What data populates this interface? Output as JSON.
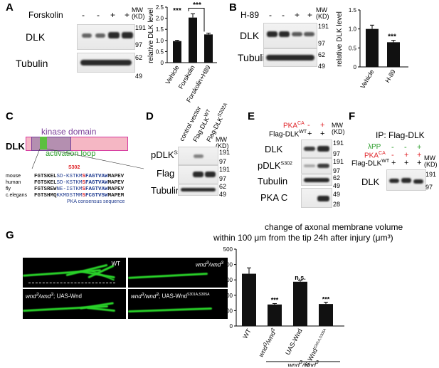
{
  "panels": {
    "A": {
      "label": "A",
      "treatment": "Forskolin",
      "lanes": [
        "-",
        "-",
        "+",
        "+"
      ],
      "mw_header": "MW\n(KD)",
      "mw": [
        "191",
        "97",
        "62",
        "49"
      ],
      "rows": [
        "DLK",
        "Tubulin"
      ],
      "chart": {
        "ylabel": "relative DLK level",
        "ticks": [
          "0",
          "0.5",
          "1.0",
          "1.5",
          "2.0",
          "2.5"
        ],
        "categories": [
          "Vehicle",
          "Forskolin",
          "Forskolin+H89"
        ],
        "sig": [
          "***",
          "***"
        ]
      }
    },
    "B": {
      "label": "B",
      "treatment": "H-89",
      "lanes": [
        "-",
        "-",
        "+",
        "+"
      ],
      "mw_header": "MW\n(KD)",
      "mw": [
        "191",
        "97",
        "62",
        "49"
      ],
      "rows": [
        "DLK",
        "Tubulin"
      ],
      "chart": {
        "ylabel": "relative DLK level",
        "ticks": [
          "0",
          "0.5",
          "1.0",
          "1.5"
        ],
        "categories": [
          "Vehicle",
          "H-89"
        ],
        "sig": [
          "***"
        ]
      }
    },
    "C": {
      "label": "C",
      "protein": "DLK",
      "kinase_domain": "kinase domain",
      "activation_loop": "activation loop",
      "site": "S302",
      "species": [
        "mouse",
        "human",
        "fly",
        "c.elegans"
      ],
      "seqs": [
        [
          "FGTSKEL",
          "SD-KSTKMS",
          "FAGTVAW",
          "MAPEV"
        ],
        [
          "FGTSKEL",
          "SD-KSTKMS",
          "FAGTVAW",
          "MAPEV"
        ],
        [
          "FGTSREW",
          "NE-ISTKMS",
          "FAGTVAW",
          "MAPEV"
        ],
        [
          "FGTSHMQ",
          "KKMDSTMMS",
          "FCGTVSW",
          "MAPEM"
        ]
      ],
      "consensus": "PKA consensus sequence"
    },
    "D": {
      "label": "D",
      "lanes": [
        "control vector",
        "Flag-DLK",
        "Flag-DLK"
      ],
      "lane_sup": [
        "",
        "WT",
        "S302A"
      ],
      "mw_header": "MW\n(KD)",
      "rows": [
        "pDLK",
        "Flag",
        "Tubulin"
      ],
      "row_sup": [
        "S302",
        "",
        ""
      ],
      "mw": [
        "191",
        "97",
        "191",
        "97",
        "62",
        "49"
      ]
    },
    "E": {
      "label": "E",
      "rowA": "PKA",
      "rowA_sup": "CA",
      "rowA_vals": [
        "-",
        "+"
      ],
      "rowB": "Flag-DLK",
      "rowB_sup": "WT",
      "rowB_vals": [
        "+",
        "+"
      ],
      "mw_header": "MW\n(KD)",
      "rows": [
        "DLK",
        "pDLK",
        "Tubulin",
        "PKA C"
      ],
      "row_sup": [
        "",
        "S302",
        "",
        ""
      ],
      "mw": [
        "191",
        "97",
        "191",
        "97",
        "62",
        "49",
        "49",
        "28"
      ]
    },
    "F": {
      "label": "F",
      "title": "IP: Flag-DLK",
      "rowA": "λPP",
      "rowA_vals": [
        "-",
        "-",
        "+"
      ],
      "rowB": "PKA",
      "rowB_sup": "CA",
      "rowB_vals": [
        "-",
        "+",
        "+"
      ],
      "rowC": "Flag-DLK",
      "rowC_sup": "WT",
      "rowC_vals": [
        "+",
        "+",
        "+"
      ],
      "mw_header": "MW\n(KD)",
      "row": "DLK",
      "mw": [
        "191",
        "97"
      ]
    },
    "G": {
      "label": "G",
      "title_line1": "change of axonal membrane volume",
      "title_line2": "within 100 μm from the tip 24h after injury (μm³)",
      "images": [
        {
          "pre": "WT",
          "sup": "",
          "post": ""
        },
        {
          "pre": "wnd",
          "sup": "3",
          "post": "/wnd",
          "sup2": "3",
          "tail": ""
        },
        {
          "pre": "wnd",
          "sup": "3",
          "post": "/wnd",
          "sup2": "3",
          "tail": "; UAS-Wnd"
        },
        {
          "pre": "wnd",
          "sup": "3",
          "post": "/wnd",
          "sup2": "3",
          "tail": "; UAS-Wnd",
          "sup3": "S301A,S305A"
        }
      ],
      "chart": {
        "ticks": [
          "0",
          "100",
          "200",
          "300",
          "400",
          "500"
        ],
        "categories": [
          "WT",
          "wnd3/wnd3",
          "UAS-Wnd",
          "UAS-WndS301A,S305A"
        ],
        "sig": [
          "***",
          "n.s.",
          "***"
        ],
        "group": "wnd3/wnd3"
      }
    }
  },
  "chart_data": [
    {
      "type": "bar",
      "panel": "A",
      "categories": [
        "Vehicle",
        "Forskolin",
        "Forskolin+H89"
      ],
      "values": [
        0.97,
        2.03,
        1.27
      ],
      "errors": [
        0.04,
        0.17,
        0.06
      ],
      "ylabel": "relative DLK level",
      "ylim": [
        0,
        2.5
      ]
    },
    {
      "type": "bar",
      "panel": "B",
      "categories": [
        "Vehicle",
        "H-89"
      ],
      "values": [
        1.0,
        0.65
      ],
      "errors": [
        0.1,
        0.05
      ],
      "ylabel": "relative DLK level",
      "ylim": [
        0,
        1.5
      ]
    },
    {
      "type": "bar",
      "panel": "G",
      "categories": [
        "WT",
        "wnd3/wnd3",
        "UAS-Wnd",
        "UAS-WndS301A,S305A"
      ],
      "values": [
        340,
        140,
        288,
        143
      ],
      "errors": [
        38,
        6,
        7,
        12
      ],
      "ylim": [
        0,
        500
      ]
    }
  ]
}
